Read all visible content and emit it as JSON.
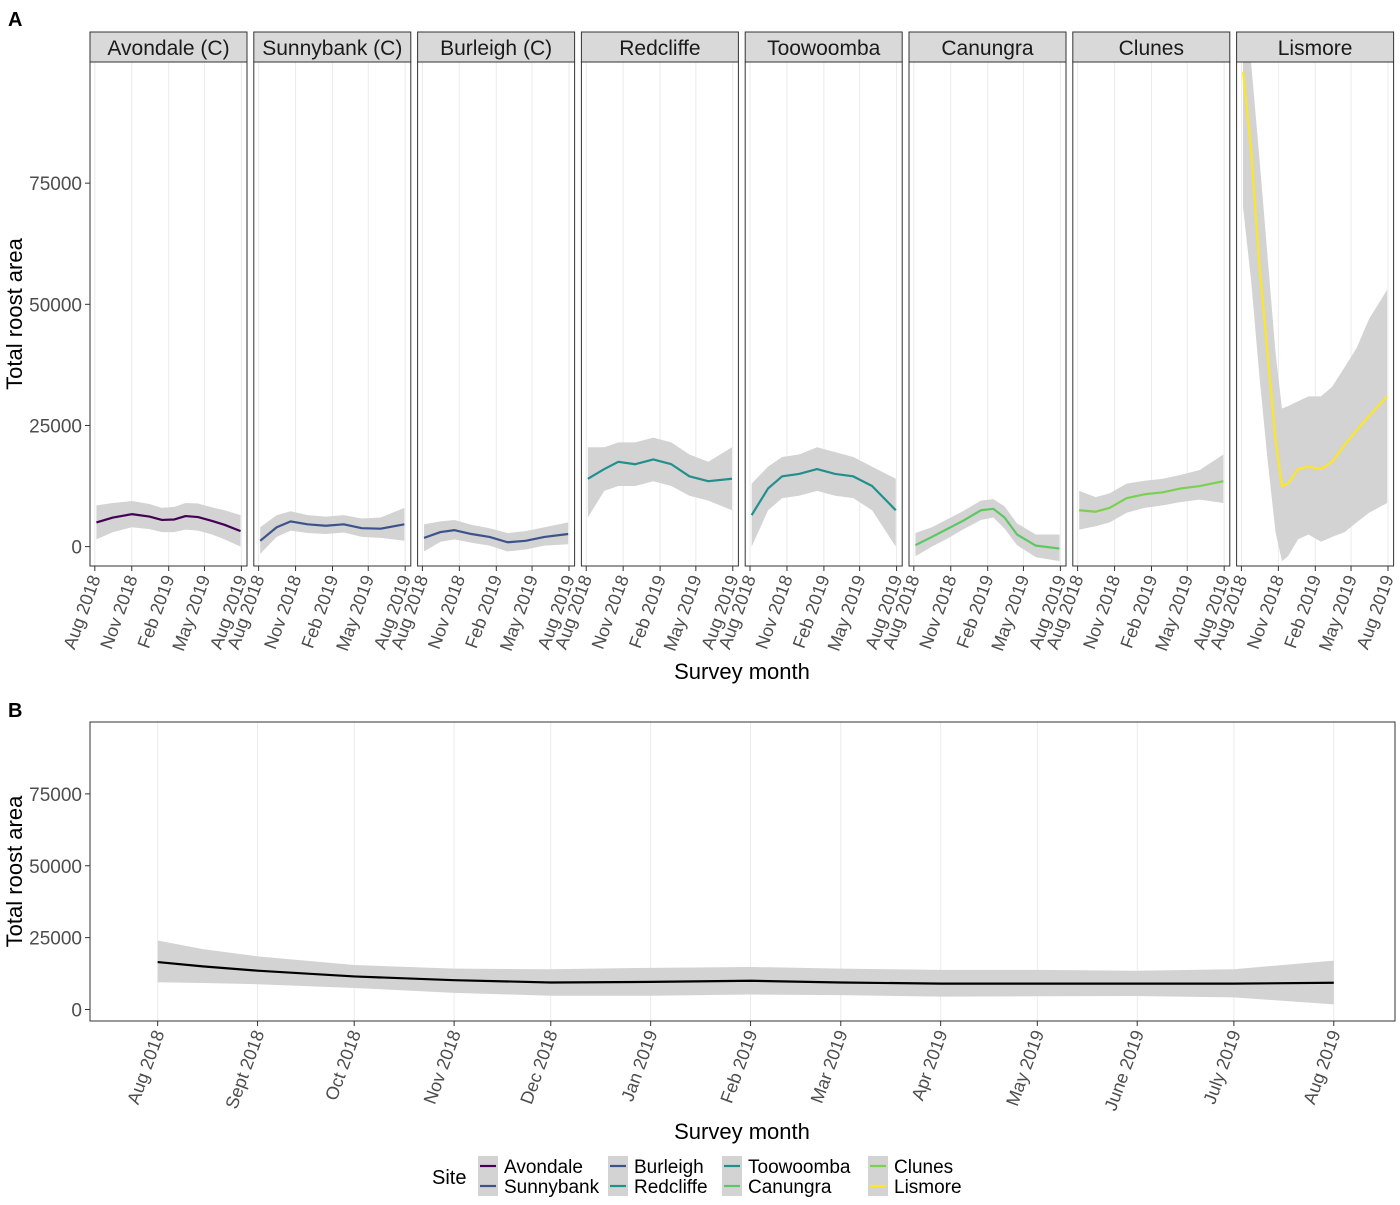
{
  "panel_a_label": "A",
  "panel_b_label": "B",
  "chart_data": [
    {
      "type": "line",
      "panel": "A",
      "facets": true,
      "ylabel": "Total roost area",
      "xlabel": "Survey month",
      "ylim": [
        -4000,
        100000
      ],
      "yticks": [
        0,
        25000,
        50000,
        75000
      ],
      "xlim": [
        "2018-07-20",
        "2019-08-15"
      ],
      "xticks": [
        {
          "date": "2018-08-01",
          "label": "Aug 2018"
        },
        {
          "date": "2018-11-01",
          "label": "Nov 2018"
        },
        {
          "date": "2019-02-01",
          "label": "Feb 2019"
        },
        {
          "date": "2019-05-01",
          "label": "May 2019"
        },
        {
          "date": "2019-08-01",
          "label": "Aug 2019"
        }
      ],
      "grid": true,
      "series": [
        {
          "strip": "Avondale (C)",
          "color": "#440154",
          "x": [
            "2018-08-05",
            "2018-09-15",
            "2018-11-01",
            "2018-12-15",
            "2019-01-15",
            "2019-02-15",
            "2019-03-15",
            "2019-04-15",
            "2019-05-20",
            "2019-06-20",
            "2019-07-30"
          ],
          "y": [
            5000,
            6000,
            6700,
            6200,
            5500,
            5600,
            6300,
            6100,
            5300,
            4500,
            3200
          ],
          "lo": [
            1500,
            3000,
            4000,
            3600,
            3000,
            3000,
            3500,
            3300,
            2500,
            1500,
            0
          ],
          "hi": [
            8500,
            9000,
            9400,
            8800,
            8000,
            8200,
            9000,
            8900,
            8100,
            7500,
            6500
          ]
        },
        {
          "strip": "Sunnybank (C)",
          "color": "#3b528b",
          "x": [
            "2018-08-05",
            "2018-09-15",
            "2018-10-20",
            "2018-12-01",
            "2019-01-15",
            "2019-03-01",
            "2019-04-15",
            "2019-06-01",
            "2019-07-30"
          ],
          "y": [
            1200,
            4000,
            5200,
            4600,
            4300,
            4600,
            3800,
            3700,
            4600
          ],
          "lo": [
            -1500,
            2000,
            3300,
            2800,
            2600,
            2900,
            2000,
            1800,
            1200
          ],
          "hi": [
            4000,
            6500,
            7300,
            6500,
            6200,
            6500,
            5800,
            6000,
            8000
          ]
        },
        {
          "strip": "Burleigh (C)",
          "color": "#3b528b",
          "x": [
            "2018-08-05",
            "2018-09-15",
            "2018-10-20",
            "2018-12-01",
            "2019-01-15",
            "2019-03-01",
            "2019-04-15",
            "2019-06-01",
            "2019-07-30"
          ],
          "y": [
            1800,
            3000,
            3400,
            2600,
            2000,
            900,
            1200,
            2000,
            2600
          ],
          "lo": [
            -1000,
            1000,
            1500,
            800,
            200,
            -1000,
            -600,
            200,
            500
          ],
          "hi": [
            4600,
            5200,
            5500,
            4500,
            3800,
            2800,
            3200,
            4000,
            5000
          ]
        },
        {
          "strip": "Redcliffe",
          "color": "#21908d",
          "x": [
            "2018-08-05",
            "2018-09-15",
            "2018-10-20",
            "2018-12-01",
            "2019-01-15",
            "2019-03-01",
            "2019-04-15",
            "2019-06-01",
            "2019-07-30"
          ],
          "y": [
            14000,
            16000,
            17500,
            17000,
            18000,
            17000,
            14500,
            13500,
            14000
          ],
          "lo": [
            6000,
            11500,
            12500,
            12500,
            13500,
            12500,
            10500,
            9500,
            7500
          ],
          "hi": [
            20500,
            20500,
            21500,
            21500,
            22500,
            21500,
            19000,
            17500,
            20500
          ]
        },
        {
          "strip": "Toowoomba",
          "color": "#21908d",
          "x": [
            "2018-08-05",
            "2018-09-15",
            "2018-10-20",
            "2018-12-01",
            "2019-01-15",
            "2019-03-01",
            "2019-04-15",
            "2019-06-01",
            "2019-07-30"
          ],
          "y": [
            6500,
            12000,
            14500,
            15000,
            16000,
            15000,
            14500,
            12500,
            7500
          ],
          "lo": [
            0,
            7500,
            10000,
            10500,
            11500,
            10500,
            10000,
            7500,
            0
          ],
          "hi": [
            13000,
            16500,
            18500,
            19000,
            20500,
            19500,
            18500,
            16500,
            14000
          ]
        },
        {
          "strip": "Canungra",
          "color": "#5dc863",
          "x": [
            "2018-08-05",
            "2018-09-15",
            "2018-10-20",
            "2018-12-01",
            "2019-01-15",
            "2019-02-15",
            "2019-03-15",
            "2019-04-15",
            "2019-06-01",
            "2019-07-30"
          ],
          "y": [
            300,
            2000,
            3500,
            5300,
            7500,
            7800,
            6000,
            2500,
            200,
            -400
          ],
          "lo": [
            -2000,
            0,
            1500,
            3500,
            5500,
            6000,
            3700,
            300,
            -2200,
            -3000
          ],
          "hi": [
            2800,
            4000,
            5500,
            7300,
            9500,
            9800,
            8300,
            4800,
            2500,
            2500
          ]
        },
        {
          "strip": "Clunes",
          "color": "#7ad151",
          "x": [
            "2018-08-05",
            "2018-09-15",
            "2018-10-20",
            "2018-12-01",
            "2019-01-15",
            "2019-03-01",
            "2019-04-15",
            "2019-06-01",
            "2019-07-30"
          ],
          "y": [
            7500,
            7200,
            8000,
            10000,
            10800,
            11200,
            12000,
            12500,
            13500
          ],
          "lo": [
            3500,
            4200,
            5000,
            7000,
            8000,
            8500,
            9200,
            9700,
            9000
          ],
          "hi": [
            11500,
            10200,
            11000,
            13000,
            13600,
            14000,
            14800,
            15800,
            19000
          ]
        },
        {
          "strip": "Lismore",
          "color": "#fde725",
          "x": [
            "2018-08-05",
            "2018-08-25",
            "2018-09-15",
            "2018-10-05",
            "2018-10-25",
            "2018-11-10",
            "2018-11-25",
            "2018-12-20",
            "2019-01-15",
            "2019-02-15",
            "2019-03-15",
            "2019-04-15",
            "2019-05-15",
            "2019-06-15",
            "2019-07-30"
          ],
          "y": [
            98000,
            82000,
            58000,
            40000,
            22000,
            12500,
            13000,
            16000,
            16500,
            16000,
            17500,
            21000,
            24000,
            27000,
            31000
          ],
          "lo": [
            70000,
            55000,
            35000,
            18000,
            3000,
            -3000,
            -2000,
            1500,
            2500,
            1000,
            2000,
            3000,
            5000,
            7000,
            9000
          ],
          "hi": [
            100000,
            100000,
            80000,
            60000,
            40000,
            28500,
            29000,
            30000,
            31000,
            31000,
            33000,
            37000,
            41000,
            47000,
            53000
          ]
        }
      ]
    },
    {
      "type": "line",
      "panel": "B",
      "ylabel": "Total roost area",
      "xlabel": "Survey month",
      "ylim": [
        -4000,
        100000
      ],
      "yticks": [
        0,
        25000,
        50000,
        75000
      ],
      "xlim": [
        "2018-07-11",
        "2019-08-20"
      ],
      "xticks": [
        {
          "date": "2018-08-01",
          "label": "Aug 2018"
        },
        {
          "date": "2018-09-01",
          "label": "Sept 2018"
        },
        {
          "date": "2018-10-01",
          "label": "Oct 2018"
        },
        {
          "date": "2018-11-01",
          "label": "Nov 2018"
        },
        {
          "date": "2018-12-01",
          "label": "Dec 2018"
        },
        {
          "date": "2019-01-01",
          "label": "Jan 2019"
        },
        {
          "date": "2019-02-01",
          "label": "Feb 2019"
        },
        {
          "date": "2019-03-01",
          "label": "Mar 2019"
        },
        {
          "date": "2019-04-01",
          "label": "Apr 2019"
        },
        {
          "date": "2019-05-01",
          "label": "May 2019"
        },
        {
          "date": "2019-06-01",
          "label": "June 2019"
        },
        {
          "date": "2019-07-01",
          "label": "July 2019"
        },
        {
          "date": "2019-08-01",
          "label": "Aug 2019"
        }
      ],
      "grid": true,
      "series": [
        {
          "color": "#000000",
          "x": [
            "2018-08-01",
            "2018-08-15",
            "2018-09-01",
            "2018-10-01",
            "2018-11-01",
            "2018-12-01",
            "2019-01-01",
            "2019-02-01",
            "2019-03-01",
            "2019-04-01",
            "2019-05-01",
            "2019-06-01",
            "2019-07-01",
            "2019-08-01"
          ],
          "y": [
            16500,
            15000,
            13500,
            11500,
            10200,
            9400,
            9600,
            10000,
            9400,
            9000,
            9000,
            9000,
            9000,
            9300
          ],
          "lo": [
            9500,
            9200,
            8800,
            7500,
            5800,
            4800,
            4800,
            5200,
            5000,
            4500,
            4600,
            4700,
            4200,
            1800
          ],
          "hi": [
            24000,
            21000,
            18500,
            15500,
            14200,
            14000,
            14500,
            14800,
            14200,
            13800,
            13800,
            13500,
            14000,
            17000
          ]
        }
      ]
    }
  ],
  "legend": {
    "title": "Site",
    "position": "bottom",
    "items": [
      {
        "label": "Avondale",
        "color": "#440154"
      },
      {
        "label": "Sunnybank",
        "color": "#3b528b"
      },
      {
        "label": "Burleigh",
        "color": "#3b528b"
      },
      {
        "label": "Redcliffe",
        "color": "#21908d"
      },
      {
        "label": "Toowoomba",
        "color": "#21908d"
      },
      {
        "label": "Canungra",
        "color": "#5dc863"
      },
      {
        "label": "Clunes",
        "color": "#7ad151"
      },
      {
        "label": "Lismore",
        "color": "#fde725"
      }
    ]
  }
}
